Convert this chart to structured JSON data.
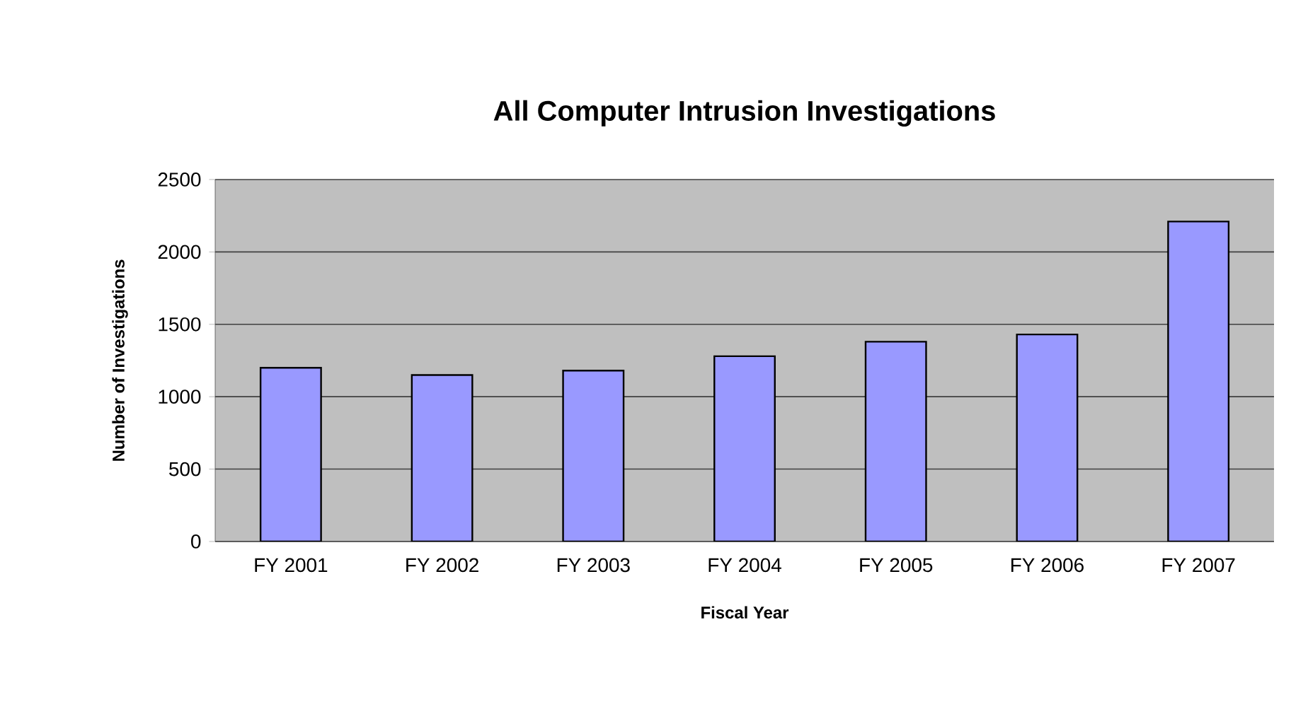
{
  "chart_data": {
    "type": "bar",
    "title": "All Computer Intrusion Investigations",
    "xlabel": "Fiscal Year",
    "ylabel": "Number of Investigations",
    "categories": [
      "FY 2001",
      "FY 2002",
      "FY 2003",
      "FY 2004",
      "FY 2005",
      "FY 2006",
      "FY 2007"
    ],
    "values": [
      1200,
      1150,
      1180,
      1280,
      1380,
      1430,
      2210
    ],
    "color": "#9999ff",
    "ylim": [
      0,
      2500
    ],
    "yticks": [
      0,
      500,
      1000,
      1500,
      2000,
      2500
    ],
    "grid": "y"
  }
}
